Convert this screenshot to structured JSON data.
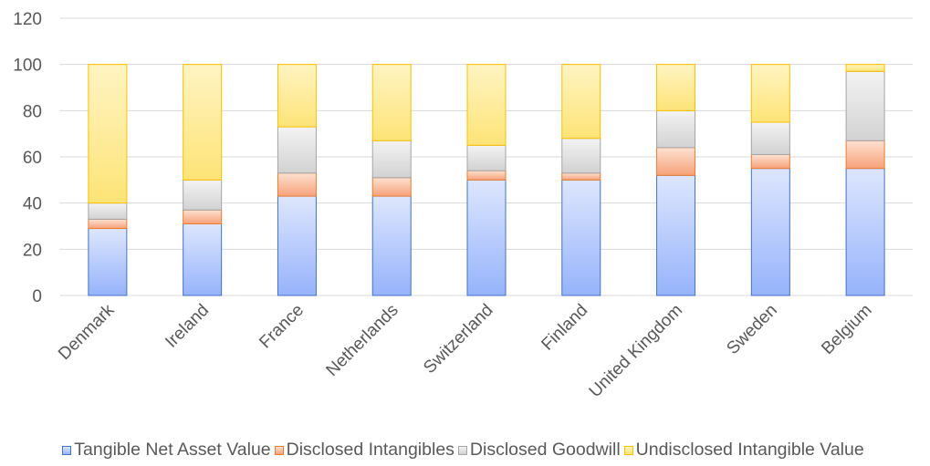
{
  "chart_data": {
    "type": "bar",
    "stacked": true,
    "title": "",
    "xlabel": "",
    "ylabel": "",
    "ylim": [
      0,
      120
    ],
    "yticks": [
      0,
      20,
      40,
      60,
      80,
      100,
      120
    ],
    "grid": true,
    "legend_position": "bottom",
    "categories": [
      "Denmark",
      "Ireland",
      "France",
      "Netherlands",
      "Switzerland",
      "Finland",
      "United Kingdom",
      "Sweden",
      "Belgium"
    ],
    "series": [
      {
        "name": "Tangible Net Asset Value",
        "fill_top": "#dde6fd",
        "fill_bottom": "#96b3fb",
        "stroke": "#4472c4",
        "values": [
          29,
          31,
          43,
          43,
          50,
          50,
          52,
          55,
          55
        ]
      },
      {
        "name": "Disclosed Intangibles",
        "fill_top": "#fde1d1",
        "fill_bottom": "#f6a27a",
        "stroke": "#ed7d31",
        "values": [
          4,
          6,
          10,
          8,
          4,
          3,
          12,
          6,
          12
        ]
      },
      {
        "name": "Disclosed Goodwill",
        "fill_top": "#f3f3f3",
        "fill_bottom": "#d2d2d2",
        "stroke": "#a5a5a5",
        "values": [
          7,
          13,
          20,
          16,
          11,
          15,
          16,
          14,
          30
        ]
      },
      {
        "name": "Undisclosed Intangible Value",
        "fill_top": "#fff4c2",
        "fill_bottom": "#fde477",
        "stroke": "#ffc000",
        "values": [
          60,
          50,
          27,
          33,
          35,
          32,
          20,
          25,
          3
        ]
      }
    ]
  },
  "colors": {
    "gridline": "#d9d9d9",
    "text": "#595959"
  }
}
